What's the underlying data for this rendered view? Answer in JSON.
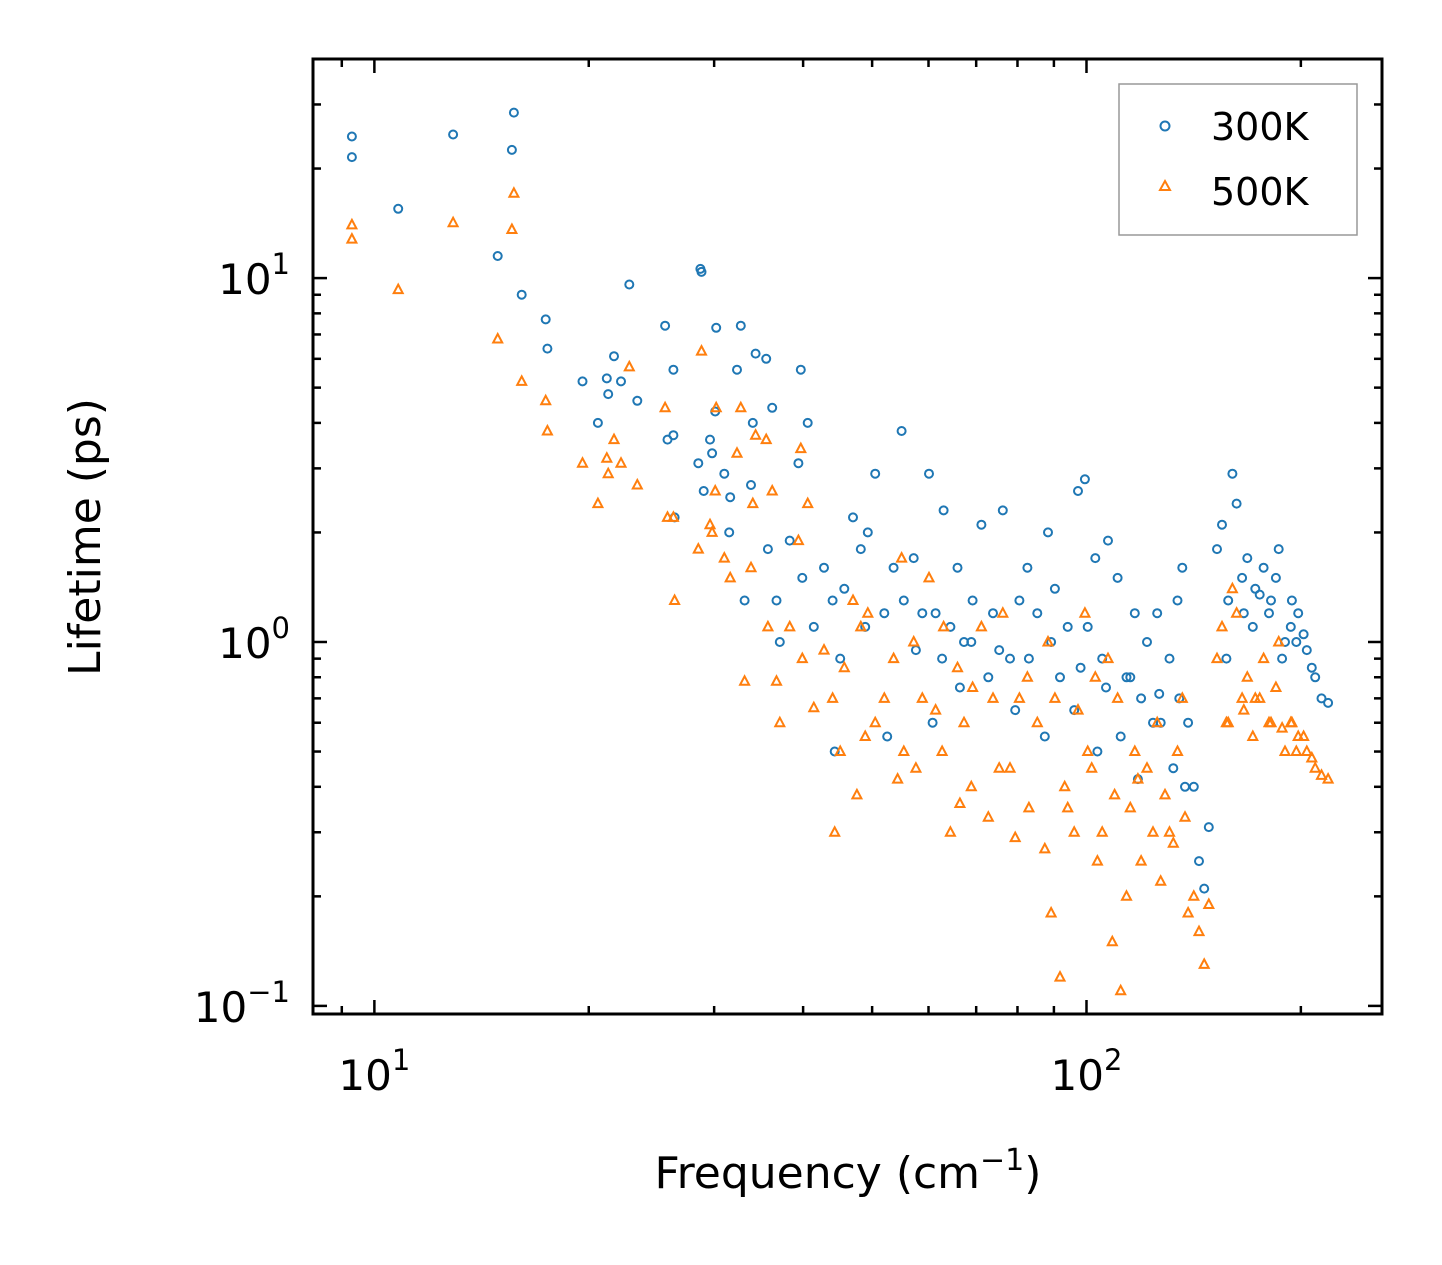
{
  "chart_data": {
    "type": "scatter",
    "title": "",
    "xlabel": {
      "main": "Frequency (cm",
      "sup": "−1",
      "close": ")"
    },
    "ylabel": "Lifetime (ps)",
    "xscale": "log",
    "yscale": "log",
    "xlim": [
      8.2,
      260
    ],
    "ylim": [
      0.095,
      40
    ],
    "x_ticks": [
      {
        "value": 10,
        "base": "10",
        "exp": "1"
      },
      {
        "value": 100,
        "base": "10",
        "exp": "2"
      }
    ],
    "y_ticks": [
      {
        "value": 0.1,
        "base": "10",
        "exp": "−1"
      },
      {
        "value": 1,
        "base": "10",
        "exp": "0"
      },
      {
        "value": 10,
        "base": "10",
        "exp": "1"
      }
    ],
    "legend_position": "top-right",
    "series": [
      {
        "name": "300K",
        "marker": "circle",
        "color": "#1f77b4",
        "points": [
          [
            9.3,
            24.5
          ],
          [
            9.3,
            21.5
          ],
          [
            10.8,
            15.5
          ],
          [
            12.9,
            24.8
          ],
          [
            14.9,
            11.5
          ],
          [
            15.6,
            22.5
          ],
          [
            15.7,
            28.5
          ],
          [
            16.1,
            9.0
          ],
          [
            17.4,
            7.7
          ],
          [
            17.5,
            6.4
          ],
          [
            19.6,
            5.2
          ],
          [
            20.6,
            4.0
          ],
          [
            21.2,
            5.3
          ],
          [
            21.3,
            4.8
          ],
          [
            21.7,
            6.1
          ],
          [
            22.2,
            5.2
          ],
          [
            22.8,
            9.6
          ],
          [
            23.4,
            4.6
          ],
          [
            25.6,
            7.4
          ],
          [
            25.8,
            3.6
          ],
          [
            26.3,
            3.7
          ],
          [
            26.3,
            5.6
          ],
          [
            26.4,
            2.2
          ],
          [
            28.5,
            3.1
          ],
          [
            28.7,
            10.6
          ],
          [
            28.8,
            10.4
          ],
          [
            29.0,
            2.6
          ],
          [
            29.6,
            3.6
          ],
          [
            29.8,
            3.3
          ],
          [
            30.1,
            4.3
          ],
          [
            30.2,
            7.3
          ],
          [
            31.0,
            2.9
          ],
          [
            31.5,
            2.0
          ],
          [
            31.6,
            2.5
          ],
          [
            32.3,
            5.6
          ],
          [
            32.7,
            7.4
          ],
          [
            33.1,
            1.3
          ],
          [
            33.8,
            2.7
          ],
          [
            34.0,
            4.0
          ],
          [
            34.3,
            6.2
          ],
          [
            35.5,
            6.0
          ],
          [
            35.7,
            1.8
          ],
          [
            36.2,
            4.4
          ],
          [
            36.7,
            1.3
          ],
          [
            37.1,
            1.0
          ],
          [
            38.3,
            1.9
          ],
          [
            39.4,
            3.1
          ],
          [
            39.7,
            5.6
          ],
          [
            39.9,
            1.5
          ],
          [
            40.6,
            4.0
          ],
          [
            41.4,
            1.1
          ],
          [
            42.8,
            1.6
          ],
          [
            44.0,
            1.3
          ],
          [
            45.7,
            1.4
          ],
          [
            47.0,
            2.2
          ],
          [
            48.2,
            1.8
          ],
          [
            49.3,
            2.0
          ],
          [
            50.5,
            2.9
          ],
          [
            52.0,
            1.2
          ],
          [
            53.6,
            1.6
          ],
          [
            55.0,
            3.8
          ],
          [
            55.4,
            1.3
          ],
          [
            57.2,
            1.7
          ],
          [
            58.8,
            1.2
          ],
          [
            60.1,
            2.9
          ],
          [
            61.4,
            1.2
          ],
          [
            63.0,
            2.3
          ],
          [
            64.4,
            1.1
          ],
          [
            65.9,
            1.6
          ],
          [
            67.3,
            1.0
          ],
          [
            69.2,
            1.3
          ],
          [
            71.2,
            2.1
          ],
          [
            73.9,
            1.2
          ],
          [
            76.3,
            2.3
          ],
          [
            78.1,
            0.9
          ],
          [
            80.5,
            1.3
          ],
          [
            82.6,
            1.6
          ],
          [
            85.3,
            1.2
          ],
          [
            88.3,
            2.0
          ],
          [
            90.3,
            1.4
          ],
          [
            91.8,
            0.8
          ],
          [
            94.1,
            1.1
          ],
          [
            97.3,
            2.6
          ],
          [
            99.5,
            2.8
          ],
          [
            100.4,
            1.1
          ],
          [
            102.9,
            1.7
          ],
          [
            105.2,
            0.9
          ],
          [
            107.2,
            1.9
          ],
          [
            110.6,
            1.5
          ],
          [
            113.8,
            0.8
          ],
          [
            116.9,
            1.2
          ],
          [
            119.3,
            0.7
          ],
          [
            121.6,
            1.0
          ],
          [
            125.7,
            1.2
          ],
          [
            127.1,
            0.6
          ],
          [
            130.8,
            0.9
          ],
          [
            134.2,
            1.3
          ],
          [
            136.3,
            1.6
          ],
          [
            138.9,
            0.6
          ],
          [
            141.5,
            0.4
          ],
          [
            143.9,
            0.25
          ],
          [
            146.3,
            0.21
          ],
          [
            148.5,
            0.31
          ],
          [
            152.5,
            1.8
          ],
          [
            155.0,
            2.1
          ],
          [
            158.1,
            1.3
          ],
          [
            160.3,
            2.9
          ],
          [
            162.5,
            2.4
          ],
          [
            165.4,
            1.5
          ],
          [
            168.2,
            1.7
          ],
          [
            172.6,
            1.4
          ],
          [
            177.3,
            1.6
          ],
          [
            181.6,
            1.3
          ],
          [
            186.2,
            1.8
          ],
          [
            190.0,
            1.0
          ],
          [
            194.3,
            1.3
          ],
          [
            198.3,
            1.2
          ],
          [
            203.9,
            0.95
          ],
          [
            209.5,
            0.8
          ],
          [
            213.8,
            0.7
          ],
          [
            218.4,
            0.68
          ],
          [
            44.3,
            0.5
          ],
          [
            52.5,
            0.55
          ],
          [
            60.8,
            0.6
          ],
          [
            66.4,
            0.75
          ],
          [
            72.8,
            0.8
          ],
          [
            79.4,
            0.65
          ],
          [
            87.4,
            0.55
          ],
          [
            96.1,
            0.65
          ],
          [
            103.6,
            0.5
          ],
          [
            111.7,
            0.55
          ],
          [
            118.1,
            0.42
          ],
          [
            124.0,
            0.6
          ],
          [
            132.4,
            0.45
          ],
          [
            137.5,
            0.4
          ],
          [
            171.2,
            1.1
          ],
          [
            180.4,
            1.2
          ],
          [
            188.2,
            0.9
          ],
          [
            197.1,
            1.0
          ],
          [
            207.2,
            0.85
          ],
          [
            45.1,
            0.9
          ],
          [
            48.9,
            1.1
          ],
          [
            57.6,
            0.95
          ],
          [
            62.7,
            0.9
          ],
          [
            68.9,
            1.0
          ],
          [
            75.4,
            0.95
          ],
          [
            83.0,
            0.9
          ],
          [
            89.2,
            1.0
          ],
          [
            98.1,
            0.85
          ],
          [
            106.5,
            0.75
          ],
          [
            115.2,
            0.8
          ],
          [
            126.5,
            0.72
          ],
          [
            135.0,
            0.7
          ],
          [
            157.2,
            0.9
          ],
          [
            166.3,
            1.2
          ],
          [
            175.1,
            1.35
          ],
          [
            184.5,
            1.5
          ],
          [
            193.6,
            1.1
          ],
          [
            201.8,
            1.05
          ]
        ]
      },
      {
        "name": "500K",
        "marker": "triangle",
        "color": "#ff7f0e",
        "points": [
          [
            9.3,
            14.0
          ],
          [
            9.3,
            12.8
          ],
          [
            10.8,
            9.3
          ],
          [
            12.9,
            14.2
          ],
          [
            14.9,
            6.8
          ],
          [
            15.6,
            13.6
          ],
          [
            15.7,
            17.1
          ],
          [
            16.1,
            5.2
          ],
          [
            17.4,
            4.6
          ],
          [
            17.5,
            3.8
          ],
          [
            19.6,
            3.1
          ],
          [
            20.6,
            2.4
          ],
          [
            21.2,
            3.2
          ],
          [
            21.3,
            2.9
          ],
          [
            21.7,
            3.6
          ],
          [
            22.2,
            3.1
          ],
          [
            22.8,
            5.7
          ],
          [
            23.4,
            2.7
          ],
          [
            25.6,
            4.4
          ],
          [
            25.8,
            2.2
          ],
          [
            26.3,
            2.2
          ],
          [
            26.4,
            1.3
          ],
          [
            28.5,
            1.8
          ],
          [
            28.8,
            6.3
          ],
          [
            29.6,
            2.1
          ],
          [
            29.8,
            2.0
          ],
          [
            30.1,
            2.6
          ],
          [
            30.2,
            4.4
          ],
          [
            31.0,
            1.7
          ],
          [
            31.6,
            1.5
          ],
          [
            32.3,
            3.3
          ],
          [
            32.7,
            4.4
          ],
          [
            33.1,
            0.78
          ],
          [
            33.8,
            1.6
          ],
          [
            34.0,
            2.4
          ],
          [
            34.3,
            3.7
          ],
          [
            35.5,
            3.6
          ],
          [
            35.7,
            1.1
          ],
          [
            36.2,
            2.6
          ],
          [
            36.7,
            0.78
          ],
          [
            37.1,
            0.6
          ],
          [
            38.3,
            1.1
          ],
          [
            39.4,
            1.9
          ],
          [
            39.7,
            3.4
          ],
          [
            39.9,
            0.9
          ],
          [
            40.6,
            2.4
          ],
          [
            41.4,
            0.66
          ],
          [
            42.8,
            0.95
          ],
          [
            44.0,
            0.7
          ],
          [
            44.3,
            0.3
          ],
          [
            45.7,
            0.85
          ],
          [
            47.0,
            1.3
          ],
          [
            48.2,
            1.1
          ],
          [
            49.3,
            1.2
          ],
          [
            50.5,
            0.6
          ],
          [
            52.0,
            0.7
          ],
          [
            53.6,
            0.9
          ],
          [
            55.0,
            1.7
          ],
          [
            55.4,
            0.5
          ],
          [
            57.2,
            1.0
          ],
          [
            58.8,
            0.7
          ],
          [
            60.1,
            1.5
          ],
          [
            61.4,
            0.65
          ],
          [
            63.0,
            1.1
          ],
          [
            64.4,
            0.3
          ],
          [
            65.9,
            0.85
          ],
          [
            67.3,
            0.6
          ],
          [
            69.2,
            0.75
          ],
          [
            71.2,
            1.1
          ],
          [
            73.9,
            0.7
          ],
          [
            76.3,
            1.2
          ],
          [
            78.1,
            0.45
          ],
          [
            80.5,
            0.7
          ],
          [
            82.6,
            0.8
          ],
          [
            85.3,
            0.6
          ],
          [
            88.3,
            1.0
          ],
          [
            89.2,
            0.18
          ],
          [
            90.3,
            0.7
          ],
          [
            91.8,
            0.12
          ],
          [
            94.1,
            0.35
          ],
          [
            97.3,
            0.65
          ],
          [
            99.5,
            1.2
          ],
          [
            100.4,
            0.5
          ],
          [
            102.9,
            0.8
          ],
          [
            105.2,
            0.3
          ],
          [
            107.2,
            0.9
          ],
          [
            108.7,
            0.15
          ],
          [
            110.6,
            0.7
          ],
          [
            111.7,
            0.11
          ],
          [
            113.8,
            0.2
          ],
          [
            116.9,
            0.5
          ],
          [
            119.3,
            0.25
          ],
          [
            121.6,
            0.45
          ],
          [
            125.7,
            0.6
          ],
          [
            127.1,
            0.22
          ],
          [
            130.8,
            0.3
          ],
          [
            134.2,
            0.5
          ],
          [
            136.3,
            0.7
          ],
          [
            138.9,
            0.18
          ],
          [
            141.5,
            0.2
          ],
          [
            143.9,
            0.16
          ],
          [
            146.3,
            0.13
          ],
          [
            148.5,
            0.19
          ],
          [
            152.5,
            0.9
          ],
          [
            155.0,
            1.1
          ],
          [
            158.1,
            0.6
          ],
          [
            160.3,
            1.4
          ],
          [
            162.5,
            1.2
          ],
          [
            165.4,
            0.7
          ],
          [
            168.2,
            0.8
          ],
          [
            172.6,
            0.7
          ],
          [
            177.3,
            0.9
          ],
          [
            181.6,
            0.6
          ],
          [
            186.2,
            1.0
          ],
          [
            190.0,
            0.5
          ],
          [
            194.3,
            0.6
          ],
          [
            198.3,
            0.55
          ],
          [
            203.9,
            0.5
          ],
          [
            209.5,
            0.45
          ],
          [
            213.8,
            0.43
          ],
          [
            218.4,
            0.42
          ],
          [
            45.1,
            0.5
          ],
          [
            48.9,
            0.55
          ],
          [
            57.6,
            0.45
          ],
          [
            62.7,
            0.5
          ],
          [
            68.9,
            0.4
          ],
          [
            75.4,
            0.45
          ],
          [
            83.0,
            0.35
          ],
          [
            96.1,
            0.3
          ],
          [
            103.6,
            0.25
          ],
          [
            115.2,
            0.35
          ],
          [
            124.0,
            0.3
          ],
          [
            132.4,
            0.28
          ],
          [
            157.2,
            0.6
          ],
          [
            166.3,
            0.65
          ],
          [
            175.1,
            0.7
          ],
          [
            184.5,
            0.75
          ],
          [
            193.6,
            0.6
          ],
          [
            201.8,
            0.55
          ],
          [
            47.6,
            0.38
          ],
          [
            54.3,
            0.42
          ],
          [
            66.4,
            0.36
          ],
          [
            72.8,
            0.33
          ],
          [
            79.4,
            0.29
          ],
          [
            87.4,
            0.27
          ],
          [
            93.2,
            0.4
          ],
          [
            101.7,
            0.45
          ],
          [
            109.5,
            0.38
          ],
          [
            118.1,
            0.42
          ],
          [
            128.9,
            0.38
          ],
          [
            137.5,
            0.33
          ],
          [
            171.2,
            0.55
          ],
          [
            180.4,
            0.6
          ],
          [
            188.2,
            0.58
          ],
          [
            197.1,
            0.5
          ],
          [
            207.2,
            0.48
          ]
        ]
      }
    ]
  }
}
